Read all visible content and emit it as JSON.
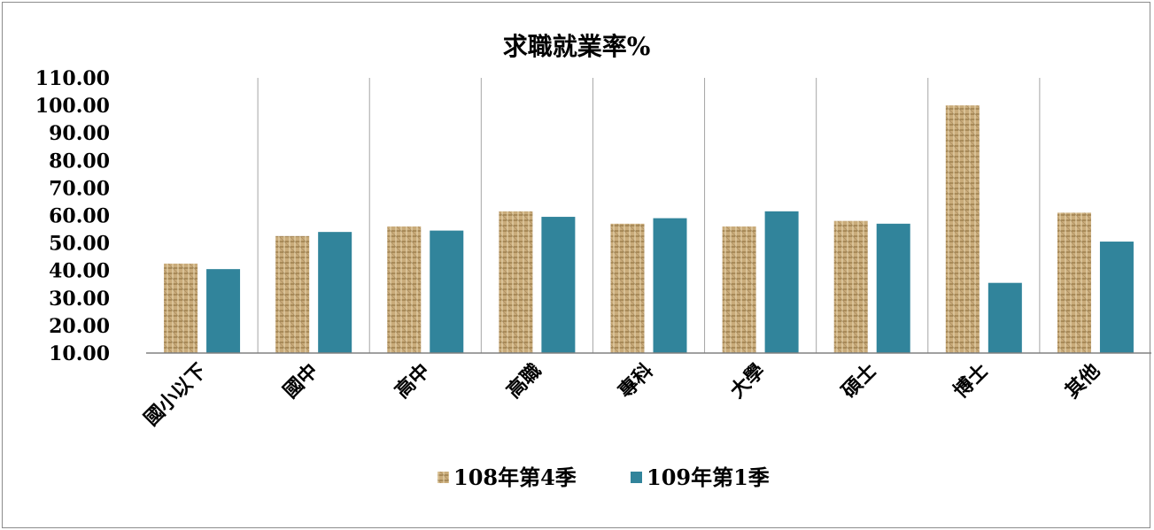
{
  "chart_data": {
    "type": "bar",
    "title": "求職就業率%",
    "categories": [
      "國小以下",
      "國中",
      "高中",
      "高職",
      "專科",
      "大學",
      "碩士",
      "博士",
      "其他"
    ],
    "series": [
      {
        "name": "108年第4季",
        "values": [
          42.5,
          52.5,
          56.0,
          61.5,
          57.0,
          56.0,
          58.0,
          100.0,
          61.0
        ],
        "color": "#c9ab7a",
        "pattern": "burlap"
      },
      {
        "name": "109年第1季",
        "values": [
          40.5,
          54.0,
          54.5,
          59.5,
          59.0,
          61.5,
          57.0,
          35.5,
          50.5
        ],
        "color": "#31849b"
      }
    ],
    "yticks": [
      "10.00",
      "20.00",
      "30.00",
      "40.00",
      "50.00",
      "60.00",
      "70.00",
      "80.00",
      "90.00",
      "100.00",
      "110.00"
    ],
    "ylim": [
      10,
      110
    ],
    "grid": "vertical category separators",
    "legend_position": "bottom"
  }
}
